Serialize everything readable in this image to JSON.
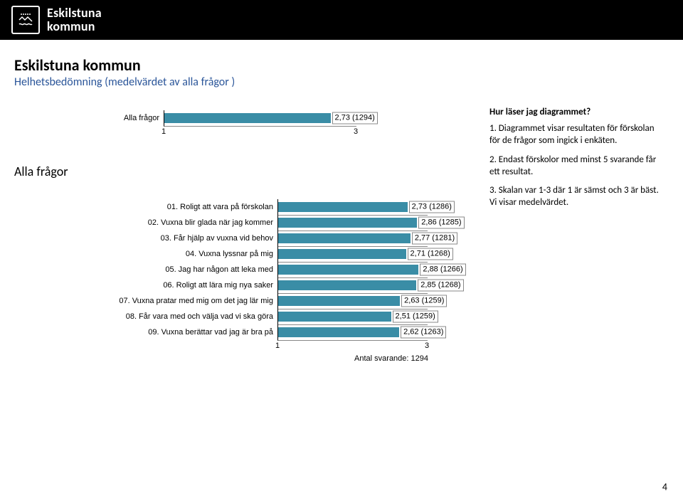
{
  "brand": {
    "name1": "Eskilstuna",
    "name2": "kommun"
  },
  "title": "Eskilstuna kommun",
  "subtitle": "Helhetsbedömning (medelvärdet av alla frågor )",
  "section_label": "Alla frågor",
  "explain": {
    "title": "Hur läser jag diagrammet?",
    "p1": "1. Diagrammet visar resultaten för förskolan för de frågor som ingick i enkäten.",
    "p2": "2. Endast förskolor med minst 5 svarande får ett resultat.",
    "p3": "3. Skalan var 1-3 där 1 är sämst och 3 är bäst. Vi visar medelvärdet."
  },
  "chart_style": {
    "bar_color": "#3a8da6",
    "xmin": 1,
    "xmax": 3,
    "xticks": [
      1,
      3
    ]
  },
  "chart1": {
    "type": "bar-horizontal",
    "label_width": 100,
    "track_width": 270,
    "row": {
      "label": "Alla frågor",
      "value": 2.73,
      "count": 1294,
      "display": "2,73 (1294)"
    }
  },
  "chart2": {
    "type": "bar-horizontal",
    "label_width": 260,
    "track_width": 210,
    "footer": "Antal svarande: 1294",
    "rows": [
      {
        "label": "01. Roligt att vara på förskolan",
        "value": 2.73,
        "count": 1286,
        "display": "2,73 (1286)"
      },
      {
        "label": "02. Vuxna blir glada när jag kommer",
        "value": 2.86,
        "count": 1285,
        "display": "2,86 (1285)"
      },
      {
        "label": "03. Får hjälp av vuxna vid behov",
        "value": 2.77,
        "count": 1281,
        "display": "2,77 (1281)"
      },
      {
        "label": "04. Vuxna lyssnar på mig",
        "value": 2.71,
        "count": 1268,
        "display": "2,71 (1268)"
      },
      {
        "label": "05. Jag har någon att leka med",
        "value": 2.88,
        "count": 1266,
        "display": "2,88 (1266)"
      },
      {
        "label": "06. Roligt att lära mig nya saker",
        "value": 2.85,
        "count": 1268,
        "display": "2,85 (1268)"
      },
      {
        "label": "07. Vuxna pratar med mig om det jag lär mig",
        "value": 2.63,
        "count": 1259,
        "display": "2,63 (1259)"
      },
      {
        "label": "08. Får vara med och välja vad vi ska göra",
        "value": 2.51,
        "count": 1259,
        "display": "2,51 (1259)"
      },
      {
        "label": "09. Vuxna berättar vad jag är bra på",
        "value": 2.62,
        "count": 1263,
        "display": "2,62 (1263)"
      }
    ]
  },
  "page_number": "4"
}
